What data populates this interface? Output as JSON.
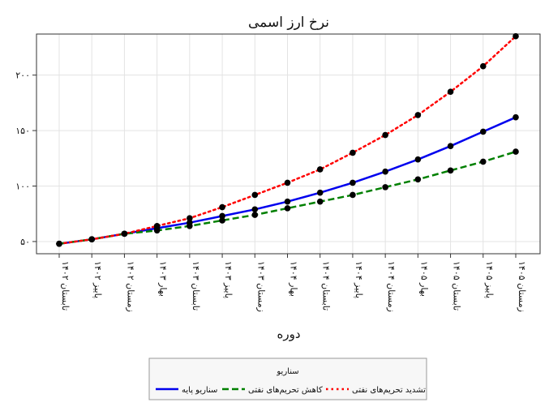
{
  "chart_data": {
    "type": "line",
    "title": "نرخ ارز اسمی",
    "xlabel": "دوره",
    "ylabel": "",
    "categories": [
      "۱۴۰۲ تابستان",
      "۱۴۰۲ پاییز",
      "۱۴۰۲ زمستان",
      "۱۴۰۳ بهار",
      "۱۴۰۳ تابستان",
      "۱۴۰۳ پاییز",
      "۱۴۰۳ زمستان",
      "۱۴۰۴ بهار",
      "۱۴۰۴ تابستان",
      "۱۴۰۴ پاییز",
      "۱۴۰۴ زمستان",
      "۱۴۰۵ بهار",
      "۱۴۰۵ تابستان",
      "۱۴۰۵ پاییز",
      "۱۴۰۵ زمستان"
    ],
    "yticks": [
      50,
      100,
      150,
      200
    ],
    "ytick_labels": [
      "۵۰",
      "۱۰۰",
      "۱۵۰",
      "۲۰۰"
    ],
    "ylim": [
      39,
      237
    ],
    "grid": true,
    "legend": {
      "title": "سناریو",
      "placement": "bottom-center"
    },
    "series": [
      {
        "name": "سناریو پایه",
        "color": "#0000ee",
        "style": "solid",
        "values": [
          48,
          52,
          57,
          62,
          67,
          73,
          79,
          86,
          94,
          103,
          113,
          124,
          136,
          149,
          162
        ]
      },
      {
        "name": "کاهش تحریم‌های نفتی",
        "color": "#008000",
        "style": "dashed",
        "values": [
          48,
          52,
          57,
          60,
          64,
          69,
          74,
          80,
          86,
          92,
          99,
          106,
          114,
          122,
          131
        ]
      },
      {
        "name": "تشدید تحریم‌های نفتی",
        "color": "#ff0000",
        "style": "dotted",
        "values": [
          48,
          52,
          57,
          64,
          71,
          81,
          92,
          103,
          115,
          130,
          146,
          164,
          185,
          208,
          235
        ]
      }
    ]
  }
}
